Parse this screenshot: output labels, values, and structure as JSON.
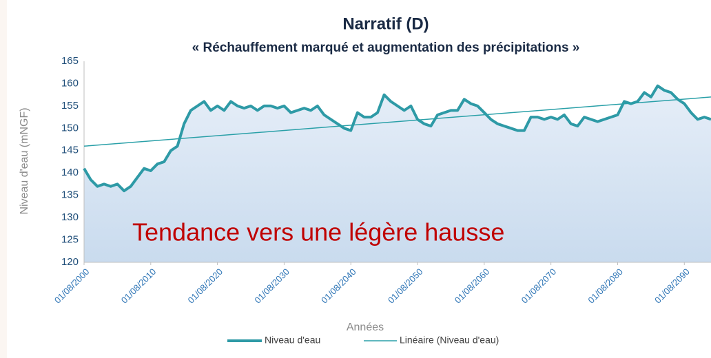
{
  "chart_data": {
    "type": "line",
    "title": "Narratif (D)",
    "subtitle": "« Réchauffement marqué et augmentation des précipitations »",
    "y_label": "Niveau d'eau (mNGF)",
    "x_label": "Années",
    "annotation": "Tendance vers une légère hausse",
    "x": [
      2000,
      2001,
      2002,
      2003,
      2004,
      2005,
      2006,
      2007,
      2008,
      2009,
      2010,
      2011,
      2012,
      2013,
      2014,
      2015,
      2016,
      2017,
      2018,
      2019,
      2020,
      2021,
      2022,
      2023,
      2024,
      2025,
      2026,
      2027,
      2028,
      2029,
      2030,
      2031,
      2032,
      2033,
      2034,
      2035,
      2036,
      2037,
      2038,
      2039,
      2040,
      2041,
      2042,
      2043,
      2044,
      2045,
      2046,
      2047,
      2048,
      2049,
      2050,
      2051,
      2052,
      2053,
      2054,
      2055,
      2056,
      2057,
      2058,
      2059,
      2060,
      2061,
      2062,
      2063,
      2064,
      2065,
      2066,
      2067,
      2068,
      2069,
      2070,
      2071,
      2072,
      2073,
      2074,
      2075,
      2076,
      2077,
      2078,
      2079,
      2080,
      2081,
      2082,
      2083,
      2084,
      2085,
      2086,
      2087,
      2088,
      2089,
      2090,
      2091,
      2092,
      2093,
      2094
    ],
    "series": [
      {
        "name": "Niveau d'eau",
        "color": "#2e9aa6",
        "values": [
          141,
          138.5,
          137,
          137.5,
          137,
          137.5,
          136,
          137,
          139,
          141,
          140.5,
          142,
          142.5,
          145,
          146,
          151,
          154,
          155,
          156,
          154,
          155,
          154,
          156,
          155,
          154.5,
          155,
          154,
          155,
          155,
          154.5,
          155,
          153.5,
          154,
          154.5,
          154,
          155,
          153,
          152,
          151,
          150,
          149.5,
          153.5,
          152.5,
          152.5,
          153.5,
          157.5,
          156,
          155,
          154,
          155,
          152,
          151,
          150.5,
          153,
          153.5,
          154,
          154,
          156.5,
          155.5,
          155,
          153.5,
          152,
          151,
          150.5,
          150,
          149.5,
          149.5,
          152.5,
          152.5,
          152,
          152.5,
          152,
          153,
          151,
          150.5,
          152.5,
          152,
          151.5,
          152,
          152.5,
          153,
          156,
          155.5,
          156,
          158,
          157,
          159.5,
          158.5,
          158,
          156.5,
          155.5,
          153.5,
          152,
          152.5,
          152
        ]
      },
      {
        "name": "Linéaire (Niveau d'eau)",
        "color": "#2aa0a8",
        "x": [
          2000,
          2094
        ],
        "values": [
          146,
          157
        ]
      }
    ],
    "xlim": [
      2000,
      2094
    ],
    "xticks": [
      {
        "value": 2000,
        "label": "01/08/2000"
      },
      {
        "value": 2010,
        "label": "01/08/2010"
      },
      {
        "value": 2020,
        "label": "01/08/2020"
      },
      {
        "value": 2030,
        "label": "01/08/2030"
      },
      {
        "value": 2040,
        "label": "01/08/2040"
      },
      {
        "value": 2050,
        "label": "01/08/2050"
      },
      {
        "value": 2060,
        "label": "01/08/2060"
      },
      {
        "value": 2070,
        "label": "01/08/2070"
      },
      {
        "value": 2080,
        "label": "01/08/2080"
      },
      {
        "value": 2090,
        "label": "01/08/2090"
      }
    ],
    "ylim": [
      120,
      165
    ],
    "yticks": [
      120,
      125,
      130,
      135,
      140,
      145,
      150,
      155,
      160,
      165
    ]
  }
}
